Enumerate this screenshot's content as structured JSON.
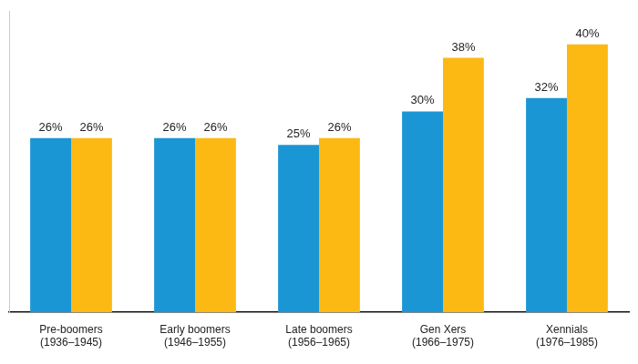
{
  "chart_data": {
    "type": "bar",
    "categories": [
      [
        "Pre-boomers",
        "(1936–1945)"
      ],
      [
        "Early boomers",
        "(1946–1955)"
      ],
      [
        "Late boomers",
        "(1956–1965)"
      ],
      [
        "Gen Xers",
        "(1966–1975)"
      ],
      [
        "Xennials",
        "(1976–1985)"
      ]
    ],
    "series": [
      {
        "color": "#1a96d4",
        "values": [
          26,
          26,
          25,
          30,
          32
        ],
        "value_labels": [
          "26%",
          "26%",
          "25%",
          "30%",
          "32%"
        ]
      },
      {
        "color": "#fdb913",
        "values": [
          26,
          26,
          26,
          38,
          40
        ],
        "value_labels": [
          "26%",
          "26%",
          "26%",
          "38%",
          "40%"
        ]
      }
    ],
    "ylim": [
      0,
      45
    ],
    "grid": false,
    "data_labels": true,
    "tick_labels": "x"
  }
}
